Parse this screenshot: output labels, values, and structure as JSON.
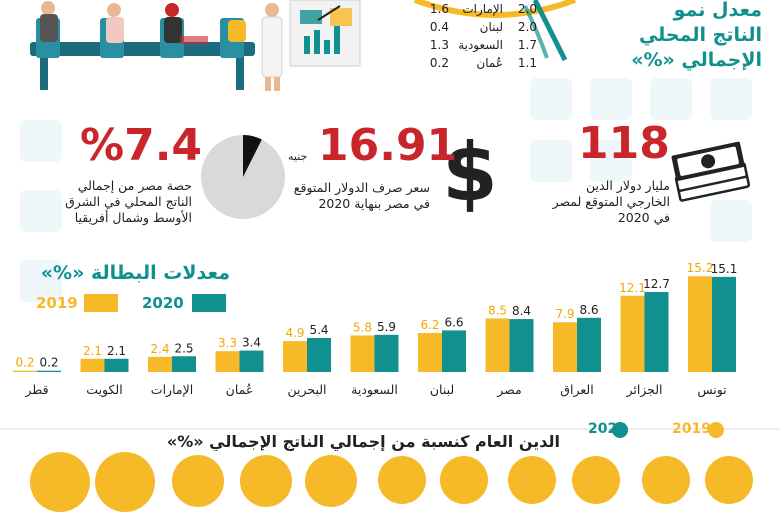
{
  "gdp_panel": {
    "title_lines": [
      "معدل نمو",
      "الناتج المحلي",
      "الإجمالي «%»"
    ],
    "rows": [
      {
        "country": "الإمارات",
        "v2019": "1.6",
        "v2020": "2.0"
      },
      {
        "country": "لبنان",
        "v2019": "0.4",
        "v2020": "2.0"
      },
      {
        "country": "السعودية",
        "v2019": "1.3",
        "v2020": "1.7"
      },
      {
        "country": "عُمان",
        "v2019": "0.2",
        "v2020": "1.1"
      }
    ]
  },
  "kpis": {
    "debt": {
      "value": "118",
      "caption_lines": [
        "مليار دولار الدين",
        "الخارجي المتوقع لمصر",
        "في 2020"
      ]
    },
    "dollar": {
      "value": "16.91",
      "unit": "جنيه",
      "caption_lines": [
        "سعر صرف الدولار المتوقع",
        "في مصر بنهاية 2020"
      ]
    },
    "share": {
      "value": "%7.4",
      "share_fraction": 0.074,
      "caption_lines": [
        "حصة مصر من إجمالي",
        "الناتج المحلي في الشرق",
        "الأوسط وشمال أفريقيا"
      ]
    }
  },
  "colors": {
    "y2019": "#f6b928",
    "y2020": "#10908f",
    "red": "#c9262c",
    "grey": "#d9d9d9"
  },
  "chart_data": {
    "type": "bar",
    "title": "معدلات البطالة «%»",
    "categories": [
      "تونس",
      "الجزائر",
      "العراق",
      "مصر",
      "لبنان",
      "السعودية",
      "البحرين",
      "عُمان",
      "الإمارات",
      "الكويت",
      "قطر"
    ],
    "series": [
      {
        "name": "2019",
        "values": [
          15.2,
          12.1,
          7.9,
          8.5,
          6.2,
          5.8,
          4.9,
          3.3,
          2.4,
          2.1,
          0.2
        ]
      },
      {
        "name": "2020",
        "values": [
          15.1,
          12.7,
          8.6,
          8.4,
          6.6,
          5.9,
          5.4,
          3.4,
          2.5,
          2.1,
          0.2
        ]
      }
    ],
    "legend_placement": "top-left",
    "grid": false
  },
  "debt_section": {
    "title": "الدين العام كنسبة من إجمالي الناتج الإجمالي «%»",
    "legend_2020": "2020",
    "legend_2019": "2019"
  }
}
